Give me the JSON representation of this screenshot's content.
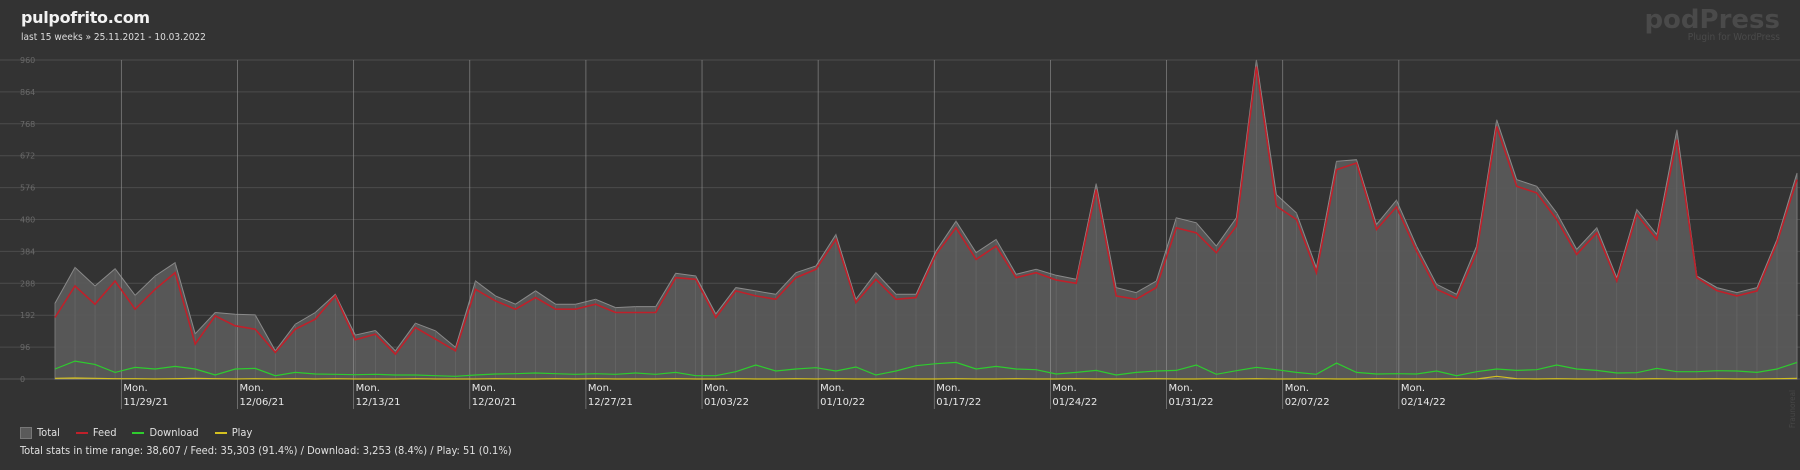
{
  "header": {
    "site": "pulpofrito.com",
    "range": "last 15 weeks » 25.11.2021 - 10.03.2022"
  },
  "brand": {
    "name": "podPress",
    "tagline": "Plugin for WordPress"
  },
  "legend": {
    "total": "Total",
    "feed": "Feed",
    "download": "Download",
    "play": "Play"
  },
  "summary": "Total stats in time range:  38,607  /  Feed: 35,303 (91.4%)  /  Download: 3,253 (8.4%)  /  Play: 51 (0.1%)",
  "side_mark": "Fraunoreal",
  "colors": {
    "background": "#333333",
    "total_fill": "#5a5a5a",
    "feed": "#c0202a",
    "download": "#2ecc2e",
    "play": "#d4c020",
    "grid": "#4c4c4c"
  },
  "chart_data": {
    "type": "area",
    "title": "",
    "xlabel": "",
    "ylabel": "",
    "ylim": [
      0,
      960
    ],
    "yticks": [
      0,
      96,
      192,
      288,
      384,
      480,
      576,
      672,
      768,
      864,
      960
    ],
    "grid": true,
    "legend_position": "bottom-left",
    "x": {
      "start": "2021-11-25",
      "end": "2022-03-10"
    },
    "week_labels": [
      {
        "date": "2021-11-29",
        "label": "Mon.",
        "date_label": "11/29/21"
      },
      {
        "date": "2021-12-06",
        "label": "Mon.",
        "date_label": "12/06/21"
      },
      {
        "date": "2021-12-13",
        "label": "Mon.",
        "date_label": "12/13/21"
      },
      {
        "date": "2021-12-20",
        "label": "Mon.",
        "date_label": "12/20/21"
      },
      {
        "date": "2021-12-27",
        "label": "Mon.",
        "date_label": "12/27/21"
      },
      {
        "date": "2022-01-03",
        "label": "Mon.",
        "date_label": "01/03/22"
      },
      {
        "date": "2022-01-10",
        "label": "Mon.",
        "date_label": "01/10/22"
      },
      {
        "date": "2022-01-17",
        "label": "Mon.",
        "date_label": "01/17/22"
      },
      {
        "date": "2022-01-24",
        "label": "Mon.",
        "date_label": "01/24/22"
      },
      {
        "date": "2022-01-31",
        "label": "Mon.",
        "date_label": "01/31/22"
      },
      {
        "date": "2022-02-07",
        "label": "Mon.",
        "date_label": "02/07/22"
      },
      {
        "date": "2022-02-14",
        "label": "Mon.",
        "date_label": "02/14/22"
      }
    ],
    "series": [
      {
        "name": "Total",
        "values": [
          228,
          336,
          280,
          332,
          252,
          310,
          350,
          136,
          200,
          195,
          193,
          85,
          165,
          200,
          255,
          132,
          146,
          85,
          168,
          145,
          95,
          295,
          250,
          225,
          265,
          225,
          225,
          240,
          215,
          218,
          218,
          318,
          310,
          196,
          275,
          265,
          255,
          320,
          340,
          435,
          240,
          320,
          255,
          255,
          385,
          475,
          380,
          420,
          315,
          330,
          312,
          300,
          588,
          275,
          260,
          295,
          485,
          470,
          400,
          485,
          960,
          555,
          500,
          335,
          655,
          660,
          465,
          538,
          400,
          285,
          255,
          400,
          780,
          600,
          580,
          500,
          390,
          455,
          305,
          510,
          435,
          750,
          310,
          275,
          260,
          275,
          420,
          620
        ]
      },
      {
        "name": "Feed",
        "values": [
          185,
          280,
          225,
          295,
          210,
          270,
          320,
          105,
          190,
          160,
          150,
          80,
          150,
          180,
          250,
          118,
          135,
          75,
          155,
          120,
          85,
          270,
          235,
          210,
          245,
          210,
          210,
          225,
          200,
          200,
          200,
          305,
          300,
          185,
          265,
          250,
          240,
          305,
          330,
          420,
          230,
          300,
          240,
          245,
          375,
          455,
          360,
          400,
          305,
          320,
          298,
          288,
          570,
          250,
          240,
          275,
          455,
          440,
          380,
          460,
          940,
          520,
          480,
          320,
          630,
          650,
          450,
          518,
          385,
          270,
          243,
          380,
          760,
          580,
          560,
          480,
          375,
          440,
          295,
          495,
          420,
          720,
          305,
          266,
          250,
          265,
          410,
          600
        ]
      },
      {
        "name": "Download",
        "values": [
          30,
          54,
          44,
          20,
          35,
          30,
          38,
          30,
          12,
          30,
          32,
          10,
          20,
          15,
          14,
          13,
          14,
          12,
          12,
          10,
          8,
          12,
          15,
          16,
          18,
          16,
          14,
          16,
          14,
          18,
          14,
          20,
          10,
          10,
          22,
          42,
          24,
          30,
          34,
          24,
          36,
          12,
          24,
          40,
          46,
          50,
          30,
          38,
          30,
          28,
          15,
          20,
          26,
          12,
          20,
          24,
          26,
          42,
          14,
          25,
          35,
          28,
          20,
          14,
          48,
          20,
          15,
          16,
          15,
          24,
          10,
          22,
          30,
          26,
          28,
          42,
          30,
          26,
          18,
          19,
          32,
          22,
          22,
          25,
          24,
          20,
          30,
          50
        ]
      },
      {
        "name": "Play",
        "values": [
          2,
          3,
          2,
          1,
          1,
          0,
          1,
          2,
          1,
          0,
          1,
          0,
          1,
          0,
          1,
          0,
          0,
          0,
          1,
          0,
          0,
          0,
          1,
          0,
          0,
          1,
          0,
          1,
          0,
          0,
          0,
          1,
          0,
          0,
          1,
          0,
          0,
          1,
          0,
          1,
          0,
          0,
          1,
          0,
          0,
          1,
          0,
          0,
          1,
          0,
          0,
          1,
          0,
          0,
          0,
          1,
          0,
          0,
          1,
          0,
          1,
          0,
          0,
          1,
          0,
          0,
          1,
          0,
          0,
          0,
          1,
          0,
          8,
          1,
          0,
          1,
          0,
          0,
          1,
          0,
          1,
          0,
          0,
          1,
          0,
          0,
          1,
          2
        ]
      }
    ]
  }
}
